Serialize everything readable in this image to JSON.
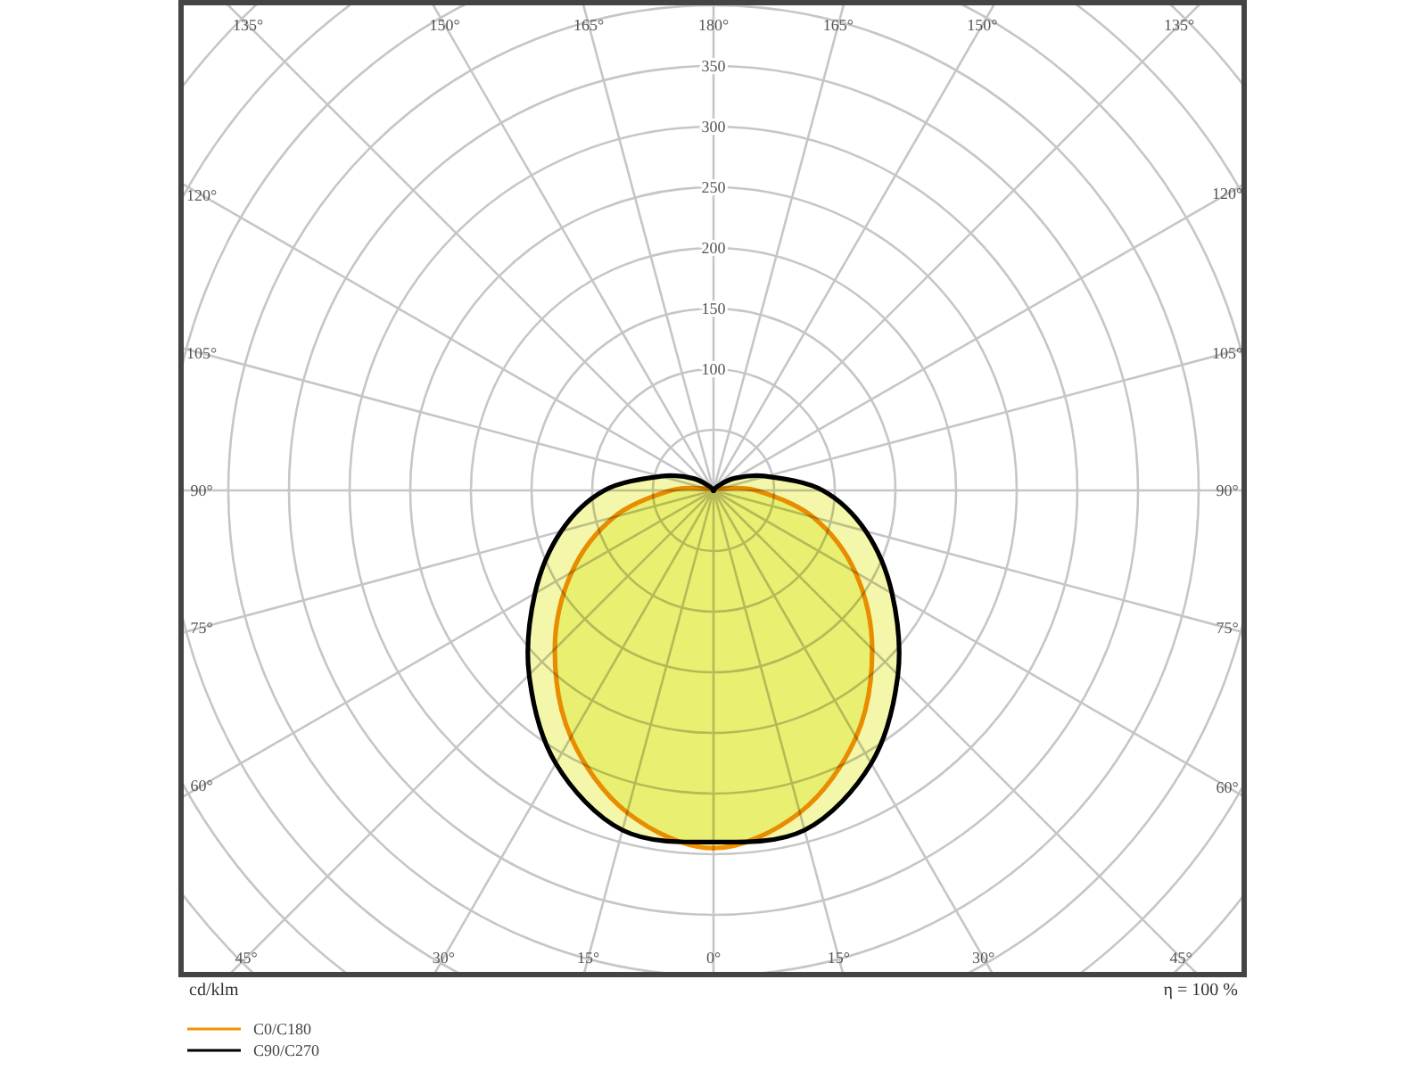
{
  "chart_data": {
    "type": "radar",
    "categories": [
      "180°",
      "165°",
      "150°",
      "135°",
      "120°",
      "105°",
      "90°",
      "75°",
      "60°",
      "45°",
      "30°",
      "15°",
      "0°",
      "15°",
      "30°",
      "45°",
      "60°",
      "75°",
      "90°",
      "105°",
      "120°",
      "135°",
      "150°",
      "165°"
    ],
    "series": [
      {
        "name": "C0/C180",
        "color": "#f39200",
        "values": [
          0,
          0,
          0,
          0,
          0,
          5,
          35,
          85,
          135,
          185,
          235,
          275,
          295,
          275,
          235,
          185,
          135,
          85,
          35,
          5,
          0,
          0,
          0,
          0
        ]
      },
      {
        "name": "C90/C270",
        "color": "#000000",
        "values": [
          0,
          0,
          0,
          5,
          20,
          45,
          90,
          130,
          170,
          215,
          260,
          290,
          290,
          290,
          260,
          215,
          170,
          130,
          90,
          45,
          20,
          5,
          0,
          0
        ]
      }
    ],
    "ylim": [
      0,
      600
    ],
    "yticks": [
      100,
      150,
      200,
      250,
      300,
      350
    ],
    "ylabel": "cd/klm",
    "annotations": [
      "η = 100 %"
    ],
    "grid": true,
    "legend": "bottom left"
  }
}
